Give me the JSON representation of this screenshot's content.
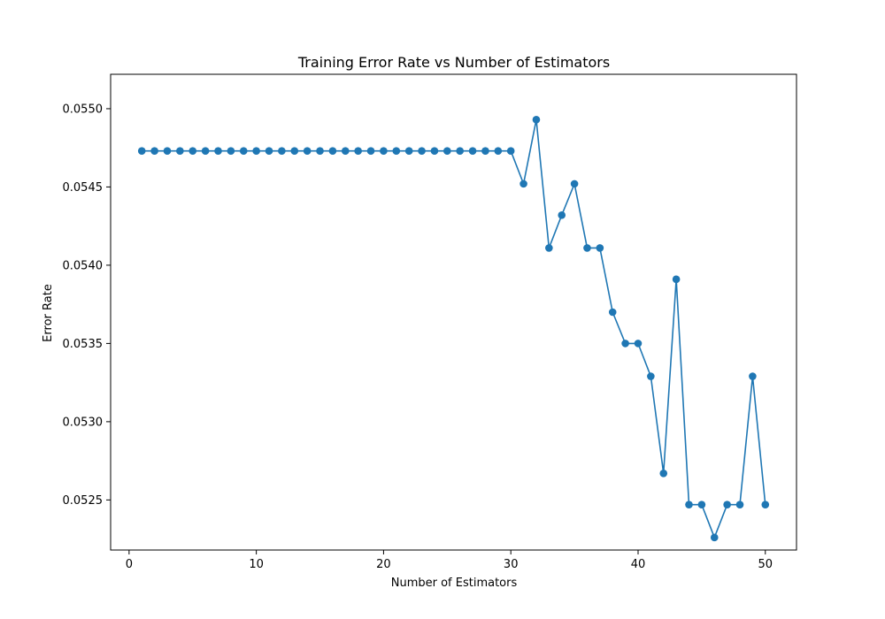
{
  "chart_data": {
    "type": "line",
    "title": "Training Error Rate vs Number of Estimators",
    "xlabel": "Number of Estimators",
    "ylabel": "Error Rate",
    "xlim": [
      -1.45,
      52.45
    ],
    "ylim": [
      0.05218,
      0.05522
    ],
    "xticks": [
      0,
      10,
      20,
      30,
      40,
      50
    ],
    "xtick_labels": [
      "0",
      "10",
      "20",
      "30",
      "40",
      "50"
    ],
    "yticks": [
      0.0525,
      0.053,
      0.0535,
      0.054,
      0.0545,
      0.055
    ],
    "ytick_labels": [
      "0.0525",
      "0.0530",
      "0.0535",
      "0.0540",
      "0.0545",
      "0.0550"
    ],
    "grid": false,
    "series_color": "#1f77b4",
    "marker": "circle",
    "x": [
      1,
      2,
      3,
      4,
      5,
      6,
      7,
      8,
      9,
      10,
      11,
      12,
      13,
      14,
      15,
      16,
      17,
      18,
      19,
      20,
      21,
      22,
      23,
      24,
      25,
      26,
      27,
      28,
      29,
      30,
      31,
      32,
      33,
      34,
      35,
      36,
      37,
      38,
      39,
      40,
      41,
      42,
      43,
      44,
      45,
      46,
      47,
      48,
      49,
      50
    ],
    "y": [
      0.05473,
      0.05473,
      0.05473,
      0.05473,
      0.05473,
      0.05473,
      0.05473,
      0.05473,
      0.05473,
      0.05473,
      0.05473,
      0.05473,
      0.05473,
      0.05473,
      0.05473,
      0.05473,
      0.05473,
      0.05473,
      0.05473,
      0.05473,
      0.05473,
      0.05473,
      0.05473,
      0.05473,
      0.05473,
      0.05473,
      0.05473,
      0.05473,
      0.05473,
      0.05473,
      0.05452,
      0.05493,
      0.05411,
      0.05432,
      0.05452,
      0.05411,
      0.05411,
      0.0537,
      0.0535,
      0.0535,
      0.05329,
      0.05267,
      0.05391,
      0.05247,
      0.05247,
      0.05226,
      0.05247,
      0.05247,
      0.05329,
      0.05247
    ]
  }
}
